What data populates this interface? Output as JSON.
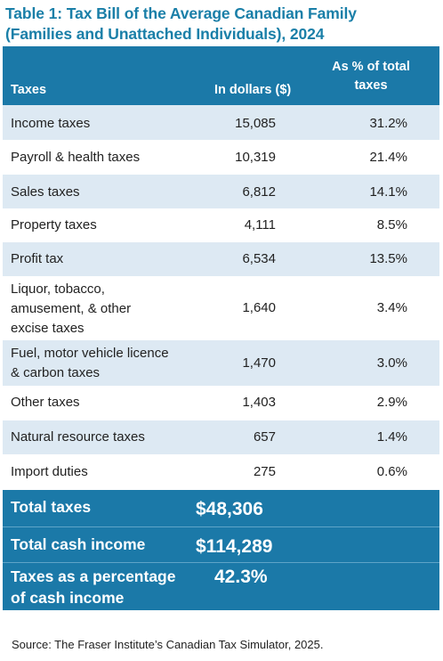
{
  "title": {
    "line1": "Table 1: Tax Bill of the Average Canadian Family",
    "line2": "(Families and Unattached Individuals), 2024"
  },
  "header": {
    "col_taxes": "Taxes",
    "col_dollars": "In dollars ($)",
    "col_pct_line1": "As % of total",
    "col_pct_line2": "taxes"
  },
  "rows": [
    {
      "name_lines": [
        "Income taxes"
      ],
      "dollars": "15,085",
      "pct": "31.2%"
    },
    {
      "name_lines": [
        "Payroll & health taxes"
      ],
      "dollars": "10,319",
      "pct": "21.4%"
    },
    {
      "name_lines": [
        "Sales taxes"
      ],
      "dollars": "6,812",
      "pct": "14.1%"
    },
    {
      "name_lines": [
        "Property taxes"
      ],
      "dollars": "4,111",
      "pct": "8.5%"
    },
    {
      "name_lines": [
        "Profit tax"
      ],
      "dollars": "6,534",
      "pct": "13.5%"
    },
    {
      "name_lines": [
        "Liquor, tobacco,",
        "amusement, & other",
        "excise taxes"
      ],
      "dollars": "1,640",
      "pct": "3.4%"
    },
    {
      "name_lines": [
        "Fuel, motor vehicle licence",
        "& carbon taxes"
      ],
      "dollars": "1,470",
      "pct": "3.0%"
    },
    {
      "name_lines": [
        "Other taxes"
      ],
      "dollars": "1,403",
      "pct": "2.9%"
    },
    {
      "name_lines": [
        "Natural resource taxes"
      ],
      "dollars": "657",
      "pct": "1.4%"
    },
    {
      "name_lines": [
        "Import duties"
      ],
      "dollars": "275",
      "pct": "0.6%"
    }
  ],
  "totals": [
    {
      "name_lines": [
        "Total taxes"
      ],
      "value": "$48,306"
    },
    {
      "name_lines": [
        "Total cash income"
      ],
      "value": "$114,289"
    },
    {
      "name_lines": [
        "Taxes as a percentage",
        "of cash income"
      ],
      "value": "42.3%"
    }
  ],
  "source": "Source: The Fraser Institute’s Canadian Tax Simulator, 2025."
}
